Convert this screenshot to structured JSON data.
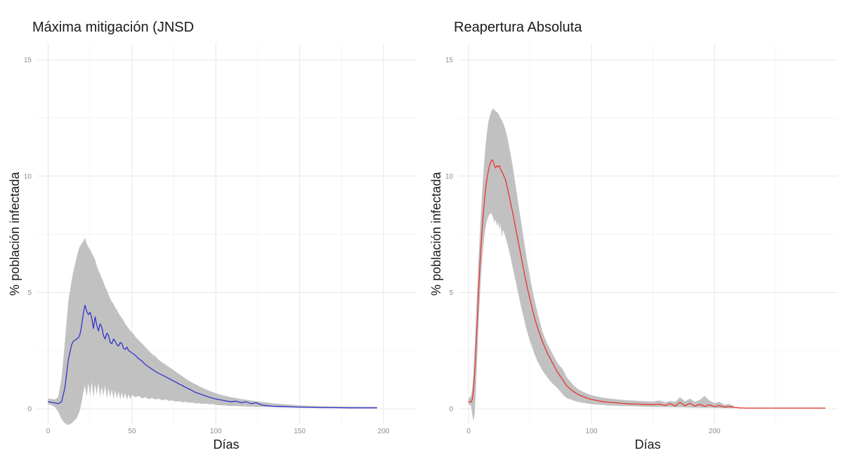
{
  "page": {
    "background": "#ffffff"
  },
  "style": {
    "band_color": "#c1c1c1",
    "blue_line_color": "#3333cc",
    "red_line_color": "#e8352c",
    "grid_major_color": "#e7e7e7",
    "grid_minor_color": "#f3f3f3",
    "tick_label_color": "#8c8c8c",
    "text_color": "#1a1a1a"
  },
  "chart_data": [
    {
      "type": "line",
      "title": "Máxima mitigación (JNSD",
      "xlabel": "Días",
      "ylabel": "% población infectada",
      "legend": "none",
      "grid": "major+minor",
      "x_ticks": [
        0,
        50,
        100,
        150,
        200
      ],
      "x_minor_ticks": [
        25,
        75,
        125,
        175
      ],
      "y_ticks": [
        0,
        5,
        10,
        15
      ],
      "y_minor_ticks": [
        2.5,
        7.5,
        12.5
      ],
      "xlim": [
        -6.5,
        219.3
      ],
      "ylim": [
        -0.66,
        15.7
      ],
      "line": {
        "name": "mediana",
        "color": "#3333cc",
        "x": [
          0,
          2,
          4,
          6,
          8,
          10,
          12,
          14,
          15,
          16,
          17,
          18,
          19,
          20,
          21,
          22,
          23,
          24,
          25,
          26,
          27,
          28,
          29,
          30,
          31,
          32,
          33,
          34,
          35,
          36,
          37,
          38,
          39,
          40,
          41,
          42,
          43,
          44,
          45,
          46,
          47,
          48,
          49,
          50,
          52,
          54,
          56,
          58,
          60,
          62,
          64,
          66,
          68,
          70,
          72,
          74,
          76,
          78,
          80,
          82,
          84,
          86,
          88,
          90,
          92,
          94,
          96,
          98,
          100,
          103,
          106,
          109,
          112,
          115,
          118,
          121,
          124,
          127,
          130,
          134,
          138,
          142,
          146,
          150,
          156,
          162,
          170,
          180,
          196
        ],
        "y": [
          0.3,
          0.28,
          0.25,
          0.22,
          0.3,
          0.9,
          2.1,
          2.75,
          2.9,
          2.95,
          3.0,
          3.05,
          3.2,
          3.6,
          4.1,
          4.45,
          4.2,
          4.05,
          4.15,
          3.9,
          3.45,
          3.95,
          3.6,
          3.35,
          3.65,
          3.5,
          3.15,
          3.0,
          3.25,
          3.15,
          2.85,
          2.8,
          3.0,
          2.9,
          2.75,
          2.7,
          2.85,
          2.8,
          2.6,
          2.55,
          2.65,
          2.5,
          2.45,
          2.4,
          2.3,
          2.15,
          2.05,
          1.9,
          1.8,
          1.7,
          1.6,
          1.52,
          1.45,
          1.38,
          1.3,
          1.22,
          1.15,
          1.07,
          1.0,
          0.92,
          0.85,
          0.78,
          0.7,
          0.65,
          0.6,
          0.55,
          0.5,
          0.46,
          0.42,
          0.38,
          0.34,
          0.3,
          0.33,
          0.26,
          0.3,
          0.22,
          0.26,
          0.17,
          0.14,
          0.11,
          0.1,
          0.09,
          0.08,
          0.07,
          0.06,
          0.05,
          0.05,
          0.04,
          0.04
        ]
      },
      "band": {
        "name": "intervalo-simulaciones",
        "color": "#c1c1c1",
        "x": [
          0,
          2,
          4,
          6,
          8,
          10,
          12,
          14,
          15,
          16,
          17,
          18,
          19,
          20,
          21,
          22,
          23,
          24,
          25,
          26,
          27,
          28,
          29,
          30,
          31,
          32,
          33,
          34,
          35,
          36,
          37,
          38,
          39,
          40,
          41,
          42,
          43,
          44,
          45,
          46,
          47,
          48,
          49,
          50,
          52,
          54,
          56,
          58,
          60,
          62,
          64,
          66,
          68,
          70,
          72,
          74,
          76,
          78,
          80,
          82,
          84,
          86,
          88,
          90,
          92,
          94,
          96,
          98,
          100,
          103,
          106,
          109,
          112,
          115,
          118,
          121,
          124,
          127,
          130,
          134,
          138,
          142,
          146,
          150,
          156,
          162,
          170,
          180,
          196
        ],
        "upper": [
          0.45,
          0.42,
          0.4,
          0.5,
          1.3,
          2.9,
          4.6,
          5.5,
          5.9,
          6.2,
          6.5,
          6.8,
          7.0,
          7.1,
          7.2,
          7.35,
          7.1,
          6.95,
          6.85,
          6.7,
          6.55,
          6.4,
          6.15,
          5.95,
          5.8,
          5.6,
          5.45,
          5.25,
          5.1,
          4.9,
          4.75,
          4.6,
          4.5,
          4.35,
          4.25,
          4.1,
          4.0,
          3.9,
          3.8,
          3.65,
          3.55,
          3.45,
          3.35,
          3.3,
          3.1,
          2.95,
          2.8,
          2.65,
          2.5,
          2.35,
          2.25,
          2.1,
          2.0,
          1.9,
          1.8,
          1.7,
          1.6,
          1.5,
          1.4,
          1.3,
          1.2,
          1.12,
          1.05,
          0.97,
          0.9,
          0.84,
          0.78,
          0.72,
          0.67,
          0.6,
          0.55,
          0.5,
          0.46,
          0.42,
          0.39,
          0.36,
          0.33,
          0.3,
          0.27,
          0.24,
          0.21,
          0.19,
          0.17,
          0.15,
          0.13,
          0.12,
          0.1,
          0.09,
          0.08
        ],
        "lower": [
          0.2,
          0.15,
          0.08,
          -0.12,
          -0.45,
          -0.62,
          -0.7,
          -0.62,
          -0.55,
          -0.48,
          -0.4,
          -0.25,
          -0.05,
          0.3,
          0.7,
          1.0,
          0.5,
          1.1,
          0.55,
          1.15,
          0.5,
          1.05,
          0.6,
          1.1,
          0.5,
          0.95,
          0.55,
          1.0,
          0.45,
          0.9,
          0.5,
          0.85,
          0.42,
          0.8,
          0.45,
          0.75,
          0.4,
          0.7,
          0.42,
          0.68,
          0.38,
          0.62,
          0.4,
          0.6,
          0.5,
          0.55,
          0.45,
          0.5,
          0.42,
          0.46,
          0.4,
          0.43,
          0.37,
          0.4,
          0.34,
          0.36,
          0.31,
          0.33,
          0.28,
          0.3,
          0.26,
          0.27,
          0.23,
          0.24,
          0.21,
          0.22,
          0.19,
          0.2,
          0.17,
          0.15,
          0.14,
          0.12,
          0.12,
          0.1,
          0.1,
          0.09,
          0.08,
          0.08,
          0.07,
          0.07,
          0.06,
          0.06,
          0.05,
          0.05,
          0.04,
          0.04,
          0.03,
          0.03,
          0.03
        ]
      }
    },
    {
      "type": "line",
      "title": "Reapertura Absoluta",
      "xlabel": "Días",
      "ylabel": "% población infectada",
      "legend": "none",
      "grid": "major+minor",
      "x_ticks": [
        0,
        100,
        200
      ],
      "x_minor_ticks": [
        50,
        150,
        250
      ],
      "y_ticks": [
        0,
        5,
        10,
        15
      ],
      "y_minor_ticks": [
        2.5,
        7.5,
        12.5
      ],
      "xlim": [
        -8,
        300
      ],
      "ylim": [
        -0.66,
        15.7
      ],
      "line": {
        "name": "mediana",
        "color": "#e8352c",
        "x": [
          0,
          1,
          2,
          3,
          4,
          5,
          6,
          7,
          8,
          9,
          10,
          11,
          12,
          13,
          14,
          15,
          16,
          17,
          18,
          19,
          20,
          21,
          22,
          23,
          24,
          25,
          26,
          27,
          28,
          30,
          32,
          34,
          36,
          38,
          40,
          42,
          44,
          46,
          48,
          50,
          52,
          54,
          56,
          58,
          60,
          62,
          64,
          66,
          68,
          70,
          72,
          74,
          76,
          78,
          80,
          83,
          86,
          89,
          92,
          96,
          100,
          105,
          110,
          115,
          120,
          126,
          132,
          138,
          144,
          150,
          155,
          160,
          164,
          168,
          172,
          176,
          180,
          184,
          188,
          192,
          196,
          200,
          204,
          208,
          212,
          216,
          220,
          226,
          232,
          240,
          250,
          260,
          275,
          290
        ],
        "y": [
          0.3,
          0.3,
          0.3,
          0.4,
          0.8,
          1.6,
          2.6,
          3.7,
          4.9,
          6.0,
          6.9,
          7.7,
          8.4,
          9.0,
          9.5,
          9.9,
          10.2,
          10.45,
          10.6,
          10.7,
          10.65,
          10.45,
          10.35,
          10.45,
          10.4,
          10.45,
          10.3,
          10.2,
          10.1,
          9.85,
          9.4,
          8.9,
          8.4,
          7.85,
          7.3,
          6.75,
          6.2,
          5.65,
          5.15,
          4.7,
          4.25,
          3.85,
          3.5,
          3.2,
          2.9,
          2.65,
          2.4,
          2.2,
          2.0,
          1.8,
          1.6,
          1.45,
          1.3,
          1.12,
          0.98,
          0.84,
          0.72,
          0.62,
          0.55,
          0.47,
          0.4,
          0.35,
          0.3,
          0.28,
          0.26,
          0.23,
          0.21,
          0.2,
          0.19,
          0.18,
          0.2,
          0.14,
          0.22,
          0.12,
          0.28,
          0.13,
          0.24,
          0.11,
          0.2,
          0.1,
          0.17,
          0.09,
          0.14,
          0.07,
          0.1,
          0.06,
          0.04,
          0.03,
          0.03,
          0.03,
          0.03,
          0.03,
          0.03,
          0.03
        ]
      },
      "band": {
        "name": "intervalo-simulaciones",
        "color": "#c1c1c1",
        "x": [
          0,
          1,
          2,
          3,
          4,
          5,
          6,
          7,
          8,
          9,
          10,
          11,
          12,
          13,
          14,
          15,
          16,
          17,
          18,
          19,
          20,
          21,
          22,
          23,
          24,
          25,
          26,
          27,
          28,
          30,
          32,
          34,
          36,
          38,
          40,
          42,
          44,
          46,
          48,
          50,
          52,
          54,
          56,
          58,
          60,
          62,
          64,
          66,
          68,
          70,
          72,
          74,
          76,
          78,
          80,
          83,
          86,
          89,
          92,
          96,
          100,
          105,
          110,
          115,
          120,
          126,
          132,
          138,
          144,
          150,
          155,
          160,
          164,
          168,
          172,
          176,
          180,
          184,
          188,
          192,
          196,
          200,
          204,
          208,
          212,
          216
        ],
        "upper": [
          0.45,
          0.5,
          0.55,
          0.9,
          1.6,
          2.7,
          3.9,
          5.1,
          6.3,
          7.4,
          8.4,
          9.3,
          10.1,
          10.8,
          11.4,
          11.9,
          12.3,
          12.55,
          12.7,
          12.85,
          12.9,
          12.85,
          12.8,
          12.75,
          12.7,
          12.6,
          12.5,
          12.4,
          12.3,
          12.0,
          11.55,
          11.0,
          10.4,
          9.7,
          9.0,
          8.3,
          7.6,
          6.9,
          6.25,
          5.65,
          5.1,
          4.6,
          4.15,
          3.75,
          3.35,
          3.05,
          2.8,
          2.6,
          2.4,
          2.2,
          2.0,
          1.85,
          1.75,
          1.55,
          1.35,
          1.15,
          0.98,
          0.85,
          0.76,
          0.66,
          0.58,
          0.52,
          0.47,
          0.44,
          0.41,
          0.38,
          0.36,
          0.34,
          0.33,
          0.31,
          0.36,
          0.28,
          0.34,
          0.3,
          0.5,
          0.32,
          0.44,
          0.3,
          0.38,
          0.55,
          0.35,
          0.25,
          0.3,
          0.18,
          0.2,
          0.12
        ],
        "lower": [
          0.2,
          0.18,
          0.12,
          -0.25,
          -0.55,
          -0.2,
          0.9,
          2.2,
          3.5,
          4.6,
          5.6,
          6.4,
          7.0,
          7.5,
          7.85,
          8.1,
          8.25,
          8.35,
          8.4,
          8.35,
          8.2,
          8.0,
          8.15,
          7.85,
          8.05,
          7.7,
          7.95,
          7.35,
          7.7,
          7.4,
          7.0,
          6.55,
          6.05,
          5.55,
          5.05,
          4.55,
          4.1,
          3.65,
          3.25,
          2.9,
          2.6,
          2.3,
          2.05,
          1.85,
          1.65,
          1.5,
          1.35,
          1.22,
          1.1,
          1.0,
          0.9,
          0.78,
          0.66,
          0.54,
          0.46,
          0.4,
          0.34,
          0.3,
          0.27,
          0.23,
          0.2,
          0.18,
          0.16,
          0.14,
          0.13,
          0.12,
          0.11,
          0.1,
          0.09,
          0.08,
          0.08,
          0.07,
          0.07,
          0.06,
          0.06,
          0.06,
          0.05,
          0.05,
          0.05,
          0.04,
          0.04,
          0.04,
          0.03,
          0.03,
          0.03,
          0.02
        ]
      }
    }
  ]
}
